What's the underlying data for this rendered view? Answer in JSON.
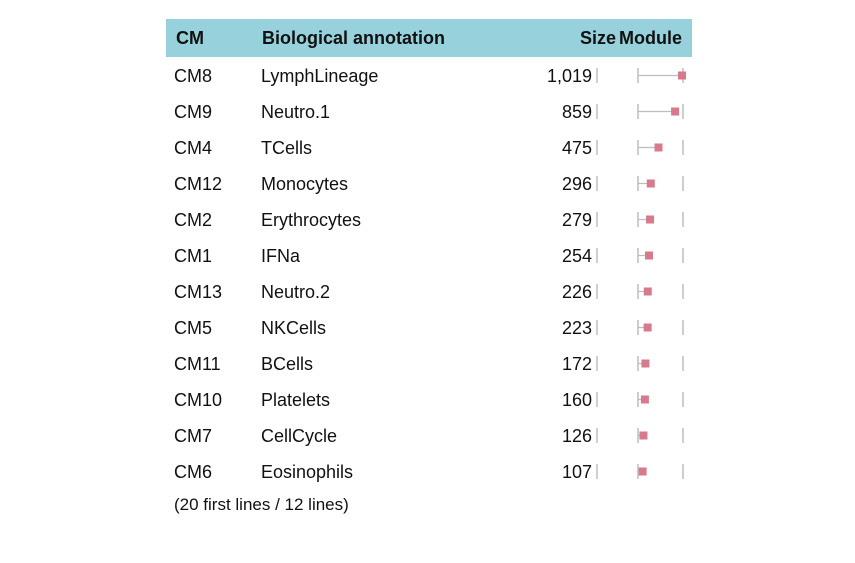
{
  "header": {
    "cm": "CM",
    "annotation": "Biological annotation",
    "size": "Size",
    "module": "Module"
  },
  "rows": [
    {
      "cm": "CM8",
      "annotation": "LymphLineage",
      "size": "1,019"
    },
    {
      "cm": "CM9",
      "annotation": "Neutro.1",
      "size": "859"
    },
    {
      "cm": "CM4",
      "annotation": "TCells",
      "size": "475"
    },
    {
      "cm": "CM12",
      "annotation": "Monocytes",
      "size": "296"
    },
    {
      "cm": "CM2",
      "annotation": "Erythrocytes",
      "size": "279"
    },
    {
      "cm": "CM1",
      "annotation": "IFNa",
      "size": "254"
    },
    {
      "cm": "CM13",
      "annotation": "Neutro.2",
      "size": "226"
    },
    {
      "cm": "CM5",
      "annotation": "NKCells",
      "size": "223"
    },
    {
      "cm": "CM11",
      "annotation": "BCells",
      "size": "172"
    },
    {
      "cm": "CM10",
      "annotation": "Platelets",
      "size": "160"
    },
    {
      "cm": "CM7",
      "annotation": "CellCycle",
      "size": "126"
    },
    {
      "cm": "CM6",
      "annotation": "Eosinophils",
      "size": "107"
    }
  ],
  "footer": "(20 first lines / 12 lines)",
  "chart_data": {
    "type": "table",
    "columns": [
      "CM",
      "Biological annotation",
      "Size",
      "Module"
    ],
    "module_range": [
      0,
      1019
    ],
    "module_values": [
      1019,
      859,
      475,
      296,
      279,
      254,
      226,
      223,
      172,
      160,
      126,
      107
    ],
    "colors": {
      "header_bg": "#96d1dc",
      "marker": "#d87a8e",
      "whisker": "#bdbdbd",
      "bar": "#cfcfcf"
    }
  }
}
